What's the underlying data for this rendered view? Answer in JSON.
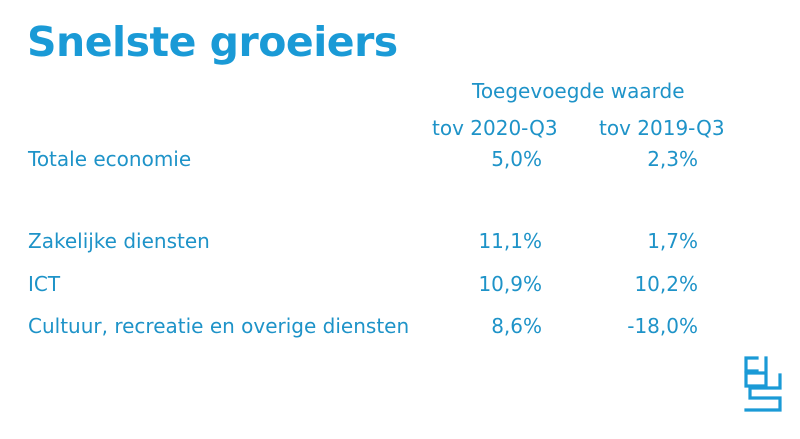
{
  "title": "Snelste groeiers",
  "header": {
    "main": "Toegevoegde waarde",
    "col1": "tov 2020-Q3",
    "col2": "tov 2019-Q3"
  },
  "rows": [
    {
      "label": "Totale economie",
      "v1": "5,0%",
      "v2": "2,3%"
    },
    {
      "label": "Zakelijke diensten",
      "v1": "11,1%",
      "v2": "1,7%"
    },
    {
      "label": "ICT",
      "v1": "10,9%",
      "v2": "10,2%"
    },
    {
      "label": "Cultuur, recreatie en overige diensten",
      "v1": "8,6%",
      "v2": "-18,0%"
    }
  ],
  "logo": {
    "icon": "cbs-logo-icon",
    "color": "#1a9ad6"
  },
  "colors": {
    "accent": "#1e93c8",
    "background": "#ffffff"
  }
}
